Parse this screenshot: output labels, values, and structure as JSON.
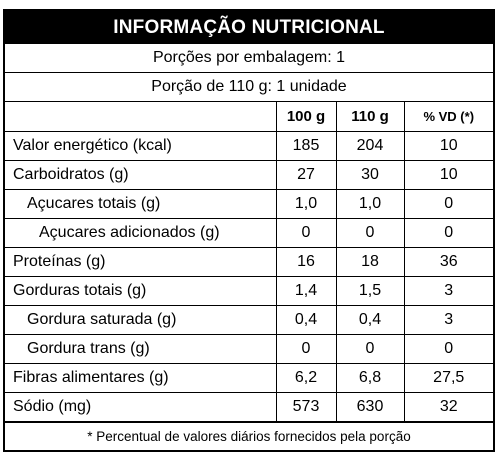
{
  "title": "INFORMAÇÃO NUTRICIONAL",
  "servings_per_package": "Porções por embalagem:  1",
  "serving_size": "Porção de 110 g: 1 unidade",
  "columns": [
    "100 g",
    "110 g",
    "% VD (*)"
  ],
  "rows": [
    {
      "name": "Valor energético (kcal)",
      "per100": "185",
      "per110": "204",
      "vd": "10"
    },
    {
      "name": "Carboidratos (g)",
      "per100": "27",
      "per110": "30",
      "vd": "10"
    },
    {
      "name": "Açucares totais (g)",
      "per100": "1,0",
      "per110": "1,0",
      "vd": "0"
    },
    {
      "name": "Açucares adicionados (g)",
      "per100": "0",
      "per110": "0",
      "vd": "0"
    },
    {
      "name": "Proteínas (g)",
      "per100": "16",
      "per110": "18",
      "vd": "36"
    },
    {
      "name": "Gorduras totais (g)",
      "per100": "1,4",
      "per110": "1,5",
      "vd": "3"
    },
    {
      "name": "Gordura saturada (g)",
      "per100": "0,4",
      "per110": "0,4",
      "vd": "3"
    },
    {
      "name": "Gordura trans (g)",
      "per100": "0",
      "per110": "0",
      "vd": "0"
    },
    {
      "name": "Fibras alimentares (g)",
      "per100": "6,2",
      "per110": "6,8",
      "vd": "27,5"
    },
    {
      "name": "Sódio (mg)",
      "per100": "573",
      "per110": "630",
      "vd": "32"
    }
  ],
  "footnote": "* Percentual de valores diários fornecidos pela porção"
}
